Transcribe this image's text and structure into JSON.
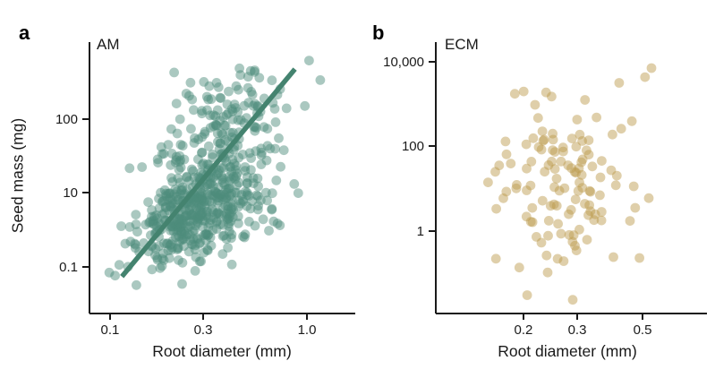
{
  "figure": {
    "background": "#ffffff",
    "text_color": "#1a1a1a",
    "axis_color": "#1a1a1a"
  },
  "chart_data": [
    {
      "type": "scatter",
      "panel_label": "a",
      "annotation": "AM",
      "xlabel": "Root diameter (mm)",
      "ylabel": "Seed mass (mg)",
      "x_scale": "log",
      "y_scale": "log",
      "grid": false,
      "legend": null,
      "x_ticks": [
        {
          "label": "0.1",
          "value": 0.1,
          "pos": 0.0774
        },
        {
          "label": "0.3",
          "value": 0.3,
          "pos": 0.4276
        },
        {
          "label": "1.0",
          "value": 1.0,
          "pos": 0.8182
        }
      ],
      "y_ticks": [
        {
          "label": "100",
          "value": 100,
          "pos": 0.2838
        },
        {
          "label": "10",
          "value": 10,
          "pos": 0.5545
        },
        {
          "label": "0.1",
          "value": 0.1,
          "pos": 0.8284
        }
      ],
      "x_range": [
        0.082,
        1.6
      ],
      "y_range": [
        0.02,
        650
      ],
      "n_points": 620,
      "points_estimated": true,
      "cloud": {
        "seed": 11,
        "log10x_mean": -0.52,
        "log10x_sd": 0.17,
        "log10y_mean": 0.85,
        "log10y_sd": 0.85,
        "correlation": 0.45
      },
      "point_color": "#4e8d7c",
      "point_opacity": 0.48,
      "point_radius": 5.4,
      "trend_line": {
        "color": "#44836f",
        "width": 5.5,
        "x1": 0.115,
        "y1": 0.055,
        "x2": 0.87,
        "y2": 480
      }
    },
    {
      "type": "scatter",
      "panel_label": "b",
      "annotation": "ECM",
      "xlabel": "Root diameter (mm)",
      "ylabel": "",
      "x_scale": "log",
      "y_scale": "log",
      "grid": false,
      "legend": null,
      "x_ticks": [
        {
          "label": "0.2",
          "value": 0.2,
          "pos": 0.3234
        },
        {
          "label": "0.3",
          "value": 0.3,
          "pos": 0.5215
        },
        {
          "label": "0.5",
          "value": 0.5,
          "pos": 0.7624
        }
      ],
      "y_ticks": [
        {
          "label": "10,000",
          "value": 10000,
          "pos": 0.0726
        },
        {
          "label": "100",
          "value": 100,
          "pos": 0.3828
        },
        {
          "label": "1",
          "value": 1,
          "pos": 0.6964
        }
      ],
      "x_range": [
        0.11,
        0.64
      ],
      "y_range": [
        0.02,
        12000
      ],
      "n_points": 125,
      "points_estimated": true,
      "cloud": {
        "seed": 4,
        "log10x_mean": -0.57,
        "log10x_sd": 0.13,
        "log10y_mean": 1.4,
        "log10y_sd": 1.3,
        "correlation": -0.05
      },
      "point_color": "#bd9a4e",
      "point_opacity": 0.48,
      "point_radius": 5.4,
      "trend_line": null
    }
  ]
}
